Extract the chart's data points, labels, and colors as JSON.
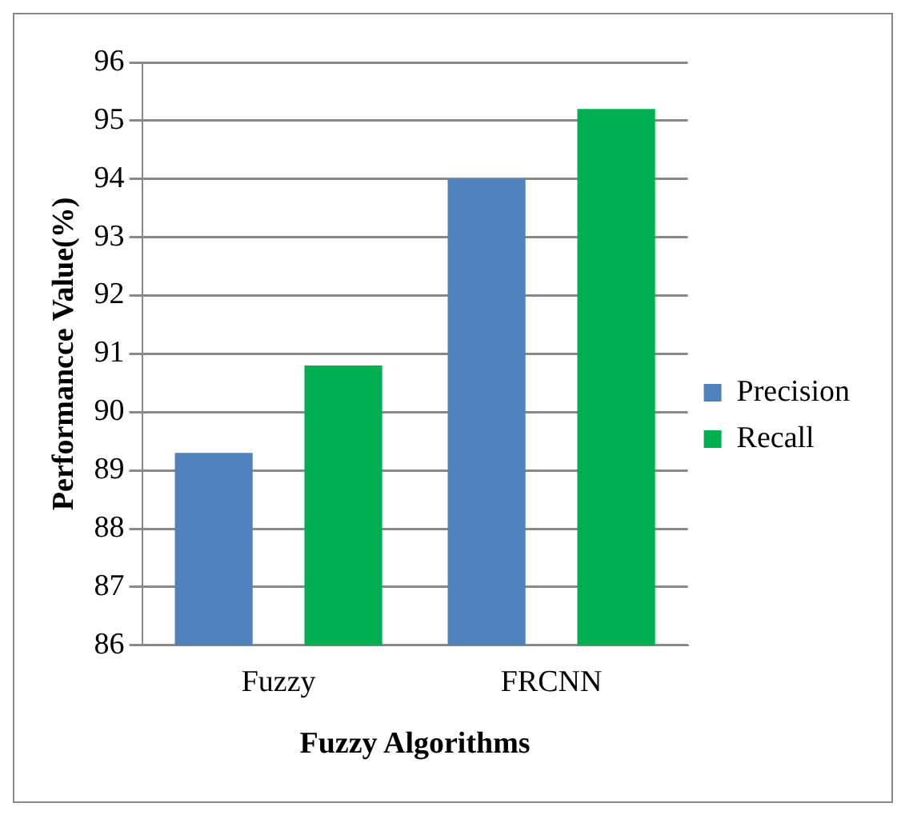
{
  "chart_data": {
    "type": "bar",
    "xlabel": "Fuzzy Algorithms",
    "ylabel": "Performancce Value(%)",
    "categories": [
      "Fuzzy",
      "FRCNN"
    ],
    "series": [
      {
        "name": "Precision",
        "color": "#4f81bd",
        "values": [
          89.3,
          94.0
        ]
      },
      {
        "name": "Recall",
        "color": "#00b050",
        "values": [
          90.8,
          95.2
        ]
      }
    ],
    "ylim": [
      86,
      96
    ],
    "yticks": [
      86,
      87,
      88,
      89,
      90,
      91,
      92,
      93,
      94,
      95,
      96
    ],
    "grid": "y",
    "legend": "right"
  }
}
